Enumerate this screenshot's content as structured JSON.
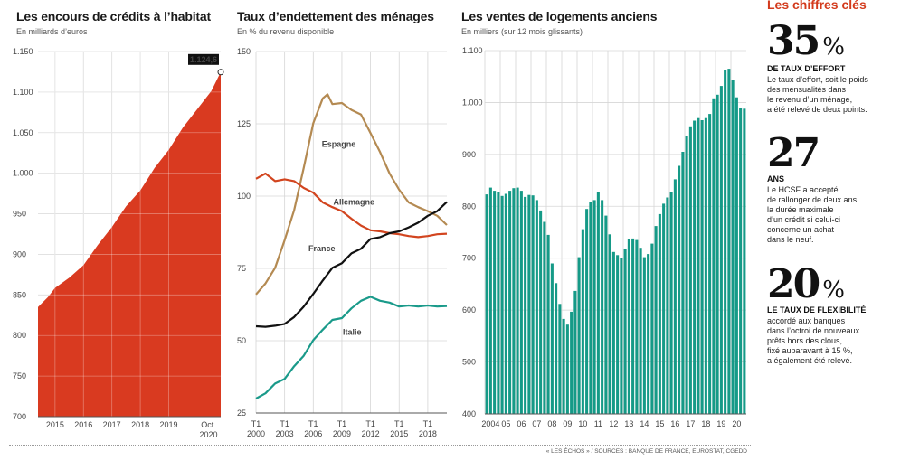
{
  "sidebar": {
    "title": "Les chiffres clés",
    "figures": [
      {
        "number": "35",
        "unit": "%",
        "caption": "DE TAUX D’EFFORT",
        "text": "Le taux d’effort, soit le poids\ndes mensualités dans\nle revenu d’un ménage,\na été relevé de deux points."
      },
      {
        "number": "27",
        "unit": "",
        "caption": "ANS",
        "text": "Le HCSF a accepté\nde rallonger de deux ans\nla durée maximale\nd’un crédit si celui-ci\nconcerne un achat\ndans le neuf."
      },
      {
        "number": "20",
        "unit": "%",
        "caption": "LE TAUX DE FLEXIBILITÉ",
        "text": "accordé aux banques\ndans l’octroi de nouveaux\nprêts hors des clous,\nfixé auparavant à 15 %,\na également été relevé."
      }
    ]
  },
  "source": "« LES ÉCHOS » / SOURCES : BANQUE DE FRANCE, EUROSTAT, CGEDD",
  "colors": {
    "red": "#d93a20",
    "green": "#159a87",
    "brown": "#b48a52",
    "allemagne": "#d2451f",
    "france": "#111111",
    "italie": "#1a9a8a"
  },
  "chart_data": [
    {
      "type": "area",
      "title": "Les encours de crédits à l’habitat",
      "subtitle": "En milliards d’euros",
      "ylim": [
        700,
        1150
      ],
      "yticks": [
        "700",
        "750",
        "800",
        "850",
        "900",
        "950",
        "1.000",
        "1.050",
        "1.100",
        "1.150"
      ],
      "xticks": [
        "2015",
        "2016",
        "2017",
        "2018",
        "2019",
        "Oct.\n2020"
      ],
      "x": [
        2014.4,
        2014.75,
        2015.0,
        2015.5,
        2016.0,
        2016.5,
        2017.0,
        2017.5,
        2018.0,
        2018.5,
        2019.0,
        2019.5,
        2020.0,
        2020.5,
        2020.83
      ],
      "values": [
        835,
        846,
        860,
        870,
        888,
        910,
        935,
        958,
        980,
        1005,
        1030,
        1055,
        1080,
        1100,
        1124.6
      ],
      "annotation": "1.124,6",
      "grid": true
    },
    {
      "type": "line",
      "title": "Taux d’endettement des ménages",
      "subtitle": "En % du revenu disponible",
      "ylim": [
        25,
        150
      ],
      "yticks": [
        "25",
        "50",
        "75",
        "100",
        "125",
        "150"
      ],
      "xticks": [
        "T1\n2000",
        "T1\n2003",
        "T1\n2006",
        "T1\n2009",
        "T1\n2012",
        "T1\n2015",
        "T1\n2018"
      ],
      "series": [
        {
          "name": "Espagne",
          "x": [
            2000,
            2001,
            2002,
            2003,
            2004,
            2005,
            2006,
            2007,
            2007.5,
            2008,
            2009,
            2010,
            2011,
            2012,
            2013,
            2014,
            2015,
            2016,
            2017,
            2018,
            2019,
            2020
          ],
          "values": [
            66,
            70,
            75,
            85,
            95,
            110,
            125,
            134,
            135,
            132,
            132,
            130,
            128,
            122,
            115,
            108,
            102,
            98,
            96,
            95,
            93,
            90
          ]
        },
        {
          "name": "Allemagne",
          "x": [
            2000,
            2001,
            2002,
            2003,
            2004,
            2005,
            2006,
            2007,
            2008,
            2009,
            2010,
            2011,
            2012,
            2013,
            2014,
            2015,
            2016,
            2017,
            2018,
            2019,
            2020
          ],
          "values": [
            106,
            108,
            105,
            106,
            105,
            103,
            101,
            98,
            96,
            95,
            92,
            90,
            88,
            88,
            87,
            87,
            86,
            86,
            86,
            87,
            87
          ]
        },
        {
          "name": "France",
          "x": [
            2000,
            2001,
            2002,
            2003,
            2004,
            2005,
            2006,
            2007,
            2008,
            2009,
            2010,
            2011,
            2012,
            2013,
            2014,
            2015,
            2016,
            2017,
            2018,
            2019,
            2020
          ],
          "values": [
            55,
            55,
            55,
            56,
            58,
            62,
            66,
            71,
            75,
            77,
            80,
            82,
            85,
            86,
            87,
            88,
            89,
            91,
            93,
            95,
            98
          ]
        },
        {
          "name": "Italie",
          "x": [
            2000,
            2001,
            2002,
            2003,
            2004,
            2005,
            2006,
            2007,
            2008,
            2009,
            2010,
            2011,
            2012,
            2013,
            2014,
            2015,
            2016,
            2017,
            2018,
            2019,
            2020
          ],
          "values": [
            30,
            32,
            35,
            37,
            41,
            45,
            50,
            54,
            57,
            58,
            61,
            64,
            65,
            64,
            63,
            62,
            62,
            62,
            62,
            62,
            62
          ]
        }
      ],
      "grid": true
    },
    {
      "type": "bar",
      "title": "Les ventes de logements anciens",
      "subtitle": "En milliers (sur 12 mois glissants)",
      "ylim": [
        400,
        1100
      ],
      "yticks": [
        "400",
        "500",
        "600",
        "700",
        "800",
        "900",
        "1.000",
        "1.100"
      ],
      "xticks": [
        "2004",
        "05",
        "06",
        "07",
        "08",
        "09",
        "10",
        "11",
        "12",
        "13",
        "14",
        "15",
        "16",
        "17",
        "18",
        "19",
        "20"
      ],
      "values": [
        823,
        836,
        830,
        828,
        820,
        824,
        830,
        835,
        836,
        830,
        818,
        822,
        821,
        812,
        792,
        770,
        745,
        690,
        652,
        612,
        583,
        572,
        597,
        637,
        702,
        756,
        795,
        808,
        812,
        827,
        812,
        782,
        746,
        712,
        706,
        701,
        717,
        737,
        738,
        735,
        720,
        702,
        708,
        728,
        762,
        785,
        805,
        817,
        828,
        852,
        878,
        905,
        935,
        954,
        965,
        970,
        966,
        970,
        978,
        1008,
        1015,
        1032,
        1062,
        1065,
        1043,
        1010,
        990,
        988
      ],
      "grid": true
    }
  ]
}
